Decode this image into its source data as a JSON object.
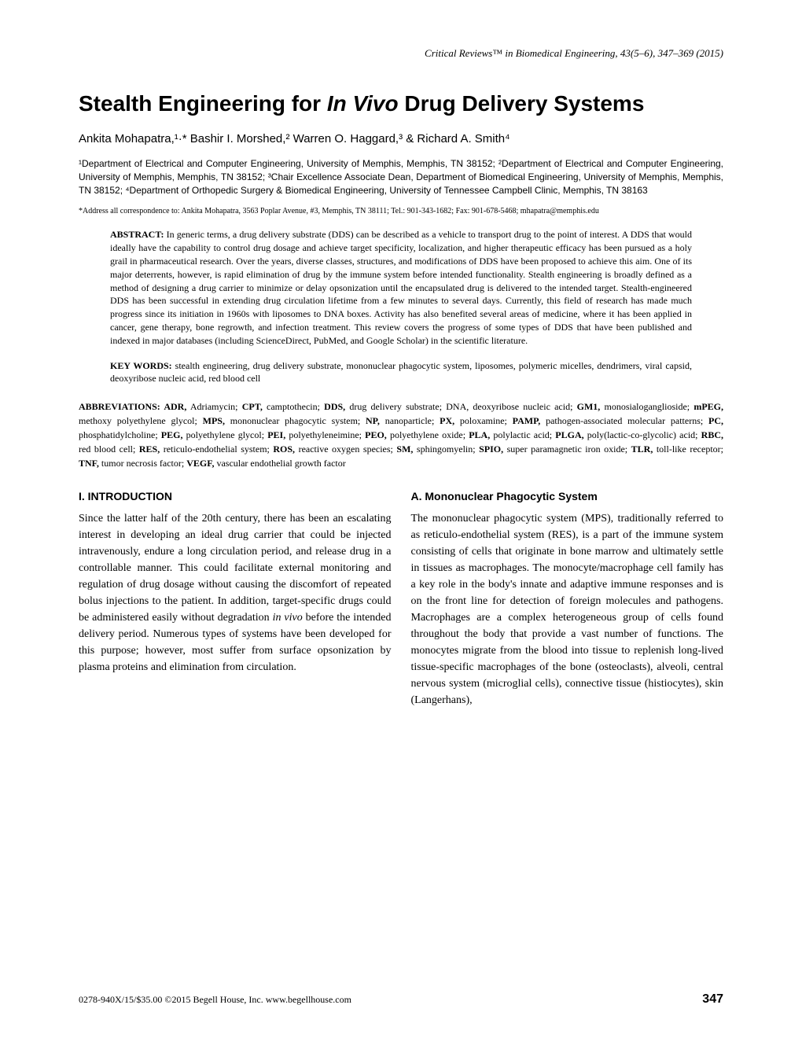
{
  "journal": {
    "name_italic": "Critical Reviews",
    "tm": "™",
    "name_rest": " in Biomedical Engineering,",
    "citation": " 43(5–6), 347–369 (2015)"
  },
  "title": {
    "part1": "Stealth Engineering for ",
    "italic": "In Vivo",
    "part2": " Drug Delivery Systems"
  },
  "authors": "Ankita Mohapatra,¹·* Bashir I. Morshed,² Warren O. Haggard,³ & Richard A. Smith⁴",
  "affiliations": "¹Department of Electrical and Computer Engineering, University of Memphis, Memphis, TN 38152; ²Department of Electrical and Computer Engineering, University of Memphis, Memphis, TN 38152; ³Chair Excellence Associate Dean, Department of Biomedical Engineering, University of Memphis, Memphis, TN 38152; ⁴Department of Orthopedic Surgery & Biomedical Engineering, University of Tennessee Campbell Clinic, Memphis, TN 38163",
  "correspondence": "*Address all correspondence to: Ankita Mohapatra, 3563 Poplar Avenue, #3, Memphis, TN 38111; Tel.: 901-343-1682; Fax: 901-678-5468; mhapatra@memphis.edu",
  "abstract": {
    "label": "ABSTRACT:",
    "text": " In generic terms, a drug delivery substrate (DDS) can be described as a vehicle to transport drug to the point of interest. A DDS that would ideally have the capability to control drug dosage and achieve target specificity, localization, and higher therapeutic efficacy has been pursued as a holy grail in pharmaceutical research. Over the years, diverse classes, structures, and modifications of DDS have been proposed to achieve this aim. One of its major deterrents, however, is rapid elimination of drug by the immune system before intended functionality. Stealth engineering is broadly defined as a method of designing a drug carrier to minimize or delay opsonization until the encapsulated drug is delivered to the intended target. Stealth-engineered DDS has been successful in extending drug circulation lifetime from a few minutes to several days. Currently, this field of research has made much progress since its initiation in 1960s with liposomes to DNA boxes. Activity has also benefited several areas of medicine, where it has been applied in cancer, gene therapy, bone regrowth, and infection treatment. This review covers the progress of some types of DDS that have been published and indexed in major databases (including ScienceDirect, PubMed, and Google Scholar) in the scientific literature."
  },
  "keywords": {
    "label": "KEY WORDS:",
    "text": " stealth engineering, drug delivery substrate, mononuclear phagocytic system, liposomes, polymeric micelles, dendrimers, viral capsid, deoxyribose nucleic acid, red blood cell"
  },
  "abbreviations": {
    "label": "ABBREVIATIONS: ",
    "items": [
      {
        "abbrev": "ADR,",
        "def": " Adriamycin; "
      },
      {
        "abbrev": "CPT,",
        "def": " camptothecin; "
      },
      {
        "abbrev": "DDS,",
        "def": " drug delivery substrate; DNA, deoxyribose nucleic acid; "
      },
      {
        "abbrev": "GM1,",
        "def": " monosialoganglioside; "
      },
      {
        "abbrev": "mPEG,",
        "def": " methoxy polyethylene glycol; "
      },
      {
        "abbrev": "MPS,",
        "def": " mononuclear phagocytic system; "
      },
      {
        "abbrev": "NP,",
        "def": " nanoparticle; "
      },
      {
        "abbrev": "PX,",
        "def": " poloxamine; "
      },
      {
        "abbrev": "PAMP,",
        "def": " pathogen-associated molecular patterns; "
      },
      {
        "abbrev": "PC,",
        "def": " phosphatidylcholine; "
      },
      {
        "abbrev": "PEG,",
        "def": " polyethylene glycol; "
      },
      {
        "abbrev": "PEI,",
        "def": " polyethyleneimine; "
      },
      {
        "abbrev": "PEO,",
        "def": " polyethylene oxide; "
      },
      {
        "abbrev": "PLA,",
        "def": " polylactic acid; "
      },
      {
        "abbrev": "PLGA,",
        "def": " poly(lactic-co-glycolic) acid; "
      },
      {
        "abbrev": "RBC,",
        "def": " red blood cell; "
      },
      {
        "abbrev": "RES,",
        "def": " reticulo-endothelial system; "
      },
      {
        "abbrev": "ROS,",
        "def": " reactive oxygen species; "
      },
      {
        "abbrev": "SM,",
        "def": " sphingomyelin; "
      },
      {
        "abbrev": "SPIO,",
        "def": " super paramagnetic iron oxide; "
      },
      {
        "abbrev": "TLR,",
        "def": " toll-like receptor; "
      },
      {
        "abbrev": "TNF,",
        "def": " tumor necrosis factor; "
      },
      {
        "abbrev": "VEGF,",
        "def": " vascular endothelial growth factor"
      }
    ]
  },
  "sections": {
    "intro_heading": "I.    INTRODUCTION",
    "intro_body_pre": "Since the latter half of the 20th century, there has been an escalating interest in developing an ideal drug carrier that could be injected intravenously, endure a long circulation period, and release drug in a controllable manner. This could facilitate external monitoring and regulation of drug dosage without causing the discomfort of repeated bolus injections to the patient. In addition, target-specific drugs could be administered easily without degradation ",
    "intro_body_italic": "in vivo",
    "intro_body_post": " before the intended delivery period. Numerous types of systems have been developed for this purpose; however, most suffer from surface opsonization by plasma proteins and elimination from circulation.",
    "subsection_heading": "A. Mononuclear Phagocytic System",
    "subsection_body": "The mononuclear phagocytic system (MPS), traditionally referred to as reticulo-endothelial system (RES), is a part of the immune system consisting of cells that originate in bone marrow and ultimately settle in tissues as macrophages. The monocyte/macrophage cell family has a key role in the body's innate and adaptive immune responses and is on the front line for detection of foreign molecules and pathogens. Macrophages are a complex heterogeneous group of cells found throughout the body that provide a vast number of functions. The monocytes migrate from the blood into tissue to replenish long-lived tissue-specific macrophages of the bone (osteoclasts), alveoli, central nervous system (microglial cells), connective tissue (histiocytes), skin (Langerhans),"
  },
  "footer": {
    "left": "0278-940X/15/$35.00 ©2015 Begell House, Inc. www.begellhouse.com",
    "page": "347"
  }
}
